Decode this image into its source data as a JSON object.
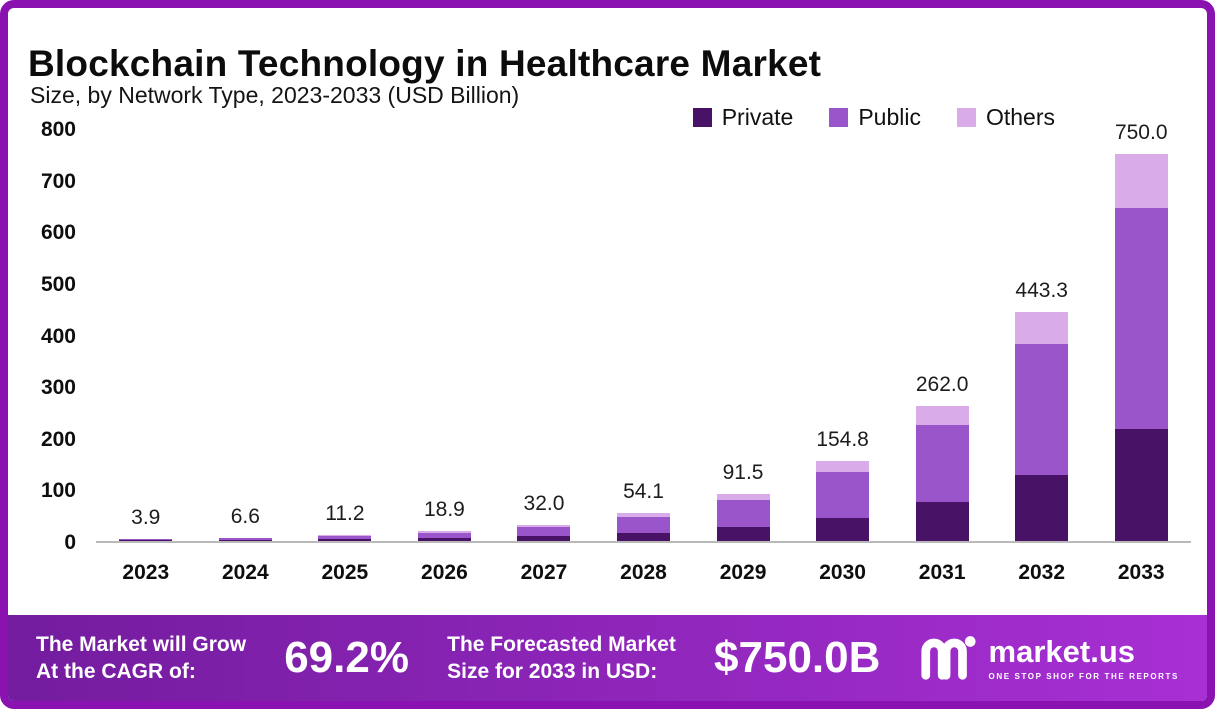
{
  "page": {
    "title": "Blockchain Technology in Healthcare Market",
    "subtitle": "Size, by Network Type, 2023-2033 (USD Billion)"
  },
  "colors": {
    "frame": "#8a12b0",
    "private": "#481366",
    "public": "#9a55cb",
    "others": "#d9abe9",
    "banner_gradient_start": "#731c9e",
    "banner_gradient_end": "#a82fd4"
  },
  "chart_data": {
    "type": "bar",
    "stacked": true,
    "title": "Blockchain Technology in Healthcare Market",
    "subtitle": "Size, by Network Type, 2023-2033 (USD Billion)",
    "xlabel": "",
    "ylabel": "",
    "ylim": [
      0,
      800
    ],
    "yticks": [
      0,
      100,
      200,
      300,
      400,
      500,
      600,
      700,
      800
    ],
    "grid": false,
    "legend_position": "top-right",
    "categories": [
      "2023",
      "2024",
      "2025",
      "2026",
      "2027",
      "2028",
      "2029",
      "2030",
      "2031",
      "2032",
      "2033"
    ],
    "totals": [
      3.9,
      6.6,
      11.2,
      18.9,
      32.0,
      54.1,
      91.5,
      154.8,
      262.0,
      443.3,
      750.0
    ],
    "total_labels": [
      "3.9",
      "6.6",
      "11.2",
      "18.9",
      "32.0",
      "54.1",
      "91.5",
      "154.8",
      "262.0",
      "443.3",
      "750.0"
    ],
    "series": [
      {
        "name": "Private",
        "color": "#481366",
        "values": [
          1.1,
          1.9,
          3.2,
          5.5,
          9.3,
          15.7,
          26.5,
          44.9,
          76.0,
          128.6,
          217.5
        ]
      },
      {
        "name": "Public",
        "color": "#9a55cb",
        "values": [
          2.2,
          3.8,
          6.4,
          10.8,
          18.2,
          30.8,
          52.2,
          88.2,
          149.3,
          252.7,
          427.5
        ]
      },
      {
        "name": "Others",
        "color": "#d9abe9",
        "values": [
          0.6,
          0.9,
          1.6,
          2.6,
          4.5,
          7.6,
          12.8,
          21.7,
          36.7,
          62.0,
          105.0
        ]
      }
    ]
  },
  "footer": {
    "cagr_text_line1": "The Market will Grow",
    "cagr_text_line2": "At the CAGR of:",
    "cagr_value": "69.2%",
    "forecast_text_line1": "The Forecasted Market",
    "forecast_text_line2": "Size for 2033 in USD:",
    "forecast_value": "$750.0B",
    "brand": "market.us",
    "brand_tagline": "ONE STOP SHOP FOR THE REPORTS"
  }
}
